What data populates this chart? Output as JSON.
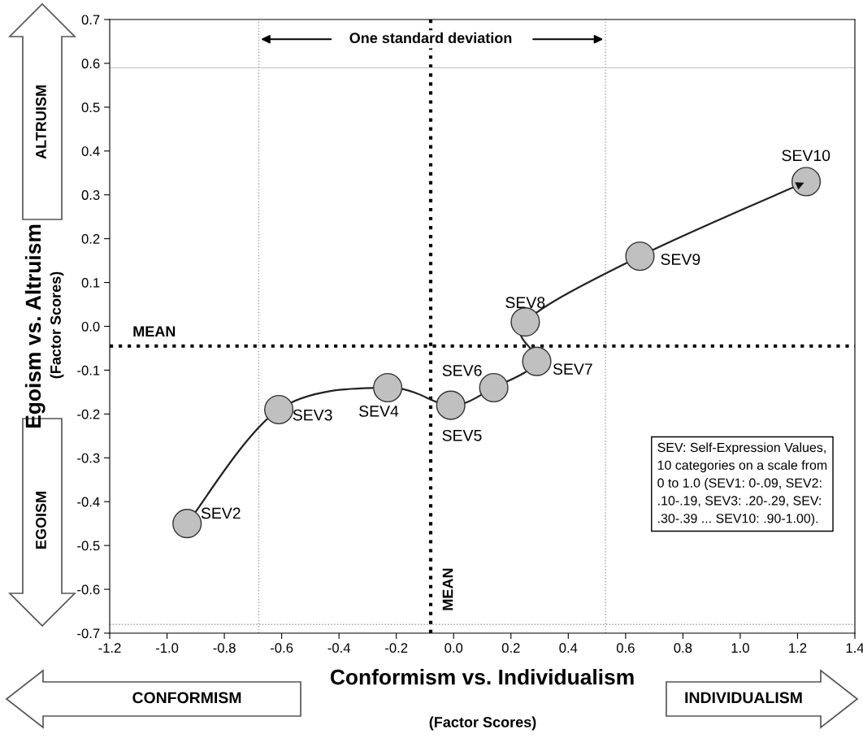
{
  "chart_data": {
    "type": "line",
    "xlabel": "Conformism vs. Individualism",
    "ylabel": "Egoism vs. Altruism",
    "x": [
      -0.93,
      -0.61,
      -0.23,
      -0.01,
      0.14,
      0.29,
      0.25,
      0.65,
      1.23
    ],
    "series": [
      {
        "color": "#c0c0c0",
        "values": [
          -0.45,
          -0.19,
          -0.14,
          -0.18,
          -0.14,
          -0.08,
          0.01,
          0.16,
          0.33
        ]
      }
    ],
    "marker": "circle",
    "line_style": "solid",
    "grid": false,
    "legend": false,
    "xlim": [
      -1.2,
      1.4
    ],
    "xticks": [
      {
        "value": -1.2,
        "label": "-1.2"
      },
      {
        "value": -1.0,
        "label": "-1.0"
      },
      {
        "value": -0.8,
        "label": "-0.8"
      },
      {
        "value": -0.6,
        "label": "-0.6"
      },
      {
        "value": -0.4,
        "label": "-0.4"
      },
      {
        "value": -0.2,
        "label": "-0.2"
      },
      {
        "value": 0,
        "label": "0.0"
      },
      {
        "value": 0.2,
        "label": "0.2"
      },
      {
        "value": 0.4,
        "label": "0.4"
      },
      {
        "value": 0.6,
        "label": "0.6"
      },
      {
        "value": 0.8,
        "label": "0.8"
      },
      {
        "value": 1.0,
        "label": "1.0"
      },
      {
        "value": 1.2,
        "label": "1.2"
      },
      {
        "value": 1.4,
        "label": "1.4"
      }
    ],
    "ylim": [
      -0.7,
      0.7
    ],
    "yticks": [
      {
        "value": -0.7,
        "label": "-0.7"
      },
      {
        "value": -0.6,
        "label": "-0.6"
      },
      {
        "value": -0.5,
        "label": "-0.5"
      },
      {
        "value": -0.4,
        "label": "-0.4"
      },
      {
        "value": -0.3,
        "label": "-0.3"
      },
      {
        "value": -0.2,
        "label": "-0.2"
      },
      {
        "value": -0.1,
        "label": "-0.1"
      },
      {
        "value": 0,
        "label": "0.0"
      },
      {
        "value": 0.1,
        "label": "0.1"
      },
      {
        "value": 0.2,
        "label": "0.2"
      },
      {
        "value": 0.3,
        "label": "0.3"
      },
      {
        "value": 0.4,
        "label": "0.4"
      },
      {
        "value": 0.5,
        "label": "0.5"
      },
      {
        "value": 0.6,
        "label": "0.6"
      },
      {
        "value": 0.7,
        "label": "0.7"
      }
    ],
    "ref_lines": [
      {
        "axis": "x",
        "value": -0.08,
        "label": "MEAN",
        "color": "#000000",
        "line_style": "dotted"
      },
      {
        "axis": "y",
        "value": -0.045,
        "label": "MEAN",
        "color": "#000000",
        "line_style": "dotted"
      },
      {
        "axis": "x",
        "value": -0.68,
        "color": "#a0a0a0",
        "line_style": "dotted"
      },
      {
        "axis": "x",
        "value": 0.53,
        "color": "#a0a0a0",
        "line_style": "dotted"
      },
      {
        "axis": "y",
        "value": 0.59,
        "color": "#c8c8c8",
        "line_style": "solid"
      },
      {
        "axis": "y",
        "value": -0.68,
        "color": "#a0a0a0",
        "line_style": "dotted"
      }
    ],
    "annotations": [
      {
        "text": "SEV2",
        "x": -0.93,
        "y": -0.45
      },
      {
        "text": "SEV3",
        "x": -0.61,
        "y": -0.19
      },
      {
        "text": "SEV4",
        "x": -0.23,
        "y": -0.14
      },
      {
        "text": "SEV5",
        "x": -0.01,
        "y": -0.18
      },
      {
        "text": "SEV6",
        "x": 0.14,
        "y": -0.14
      },
      {
        "text": "SEV7",
        "x": 0.29,
        "y": -0.08
      },
      {
        "text": "SEV8",
        "x": 0.25,
        "y": 0.01
      },
      {
        "text": "SEV9",
        "x": 0.65,
        "y": 0.16
      },
      {
        "text": "SEV10",
        "x": 1.23,
        "y": 0.33
      },
      "One standard deviation",
      "ALTRUISM",
      "EGOISM",
      "CONFORMISM",
      "INDIVIDUALISM",
      "(Factor Scores)",
      "(Factor Scores)",
      "SEV: Self-Expression Values,\n10 categories on a scale from\n0 to 1.0 (SEV1: 0-.09, SEV2:\n.10-.19, SEV3: .20-.29, SEV:\n.30-.39 ... SEV10: .90-1.00)."
    ]
  }
}
